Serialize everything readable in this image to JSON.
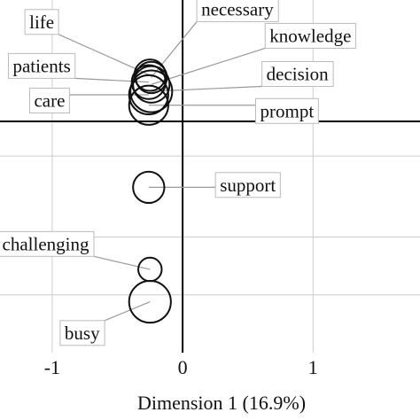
{
  "chart_data": {
    "type": "scatter",
    "xlabel": "Dimension 1 (16.9%)",
    "x_ticks": [
      -1,
      0,
      1
    ],
    "x_tick_labels": [
      "-1",
      "0",
      "1"
    ],
    "xlim": [
      -1.4,
      1.82
    ],
    "ylim": [
      -2.0,
      1.05
    ],
    "y_grid_lines": [
      -0.3,
      -1.0,
      -1.5
    ],
    "grid": true,
    "points": [
      {
        "label": "life",
        "x": -0.25,
        "y": 0.4,
        "size": 0.12
      },
      {
        "label": "necessary",
        "x": -0.24,
        "y": 0.38,
        "size": 0.12
      },
      {
        "label": "patients",
        "x": -0.26,
        "y": 0.34,
        "size": 0.13
      },
      {
        "label": "knowledge",
        "x": -0.24,
        "y": 0.32,
        "size": 0.14
      },
      {
        "label": "decision",
        "x": -0.24,
        "y": 0.26,
        "size": 0.16
      },
      {
        "label": "care",
        "x": -0.26,
        "y": 0.23,
        "size": 0.15
      },
      {
        "label": "prompt",
        "x": -0.26,
        "y": 0.14,
        "size": 0.15
      },
      {
        "label": "support",
        "x": -0.26,
        "y": -0.57,
        "size": 0.12
      },
      {
        "label": "challenging",
        "x": -0.25,
        "y": -1.28,
        "size": 0.09
      },
      {
        "label": "busy",
        "x": -0.25,
        "y": -1.56,
        "size": 0.16
      }
    ],
    "labels": [
      {
        "point": "life",
        "text": "life",
        "lx": -1.08,
        "ly": 0.86
      },
      {
        "point": "necessary",
        "text": "necessary",
        "lx": 0.42,
        "ly": 0.97
      },
      {
        "point": "patients",
        "text": "patients",
        "lx": -1.08,
        "ly": 0.48
      },
      {
        "point": "knowledge",
        "text": "knowledge",
        "lx": 0.98,
        "ly": 0.74
      },
      {
        "point": "decision",
        "text": "decision",
        "lx": 0.88,
        "ly": 0.41
      },
      {
        "point": "care",
        "text": "care",
        "lx": -1.02,
        "ly": 0.18
      },
      {
        "point": "prompt",
        "text": "prompt",
        "lx": 0.8,
        "ly": 0.09
      },
      {
        "point": "support",
        "text": "support",
        "lx": 0.5,
        "ly": -0.55
      },
      {
        "point": "challenging",
        "text": "challenging",
        "lx": -1.05,
        "ly": -1.06
      },
      {
        "point": "busy",
        "text": "busy",
        "lx": -0.77,
        "ly": -1.83
      }
    ],
    "colors": {
      "circle": "#111111",
      "axis": "#000000",
      "grid": "#cccccc",
      "leader": "#9a9a9a",
      "label_border": "#bbbbbb"
    }
  }
}
